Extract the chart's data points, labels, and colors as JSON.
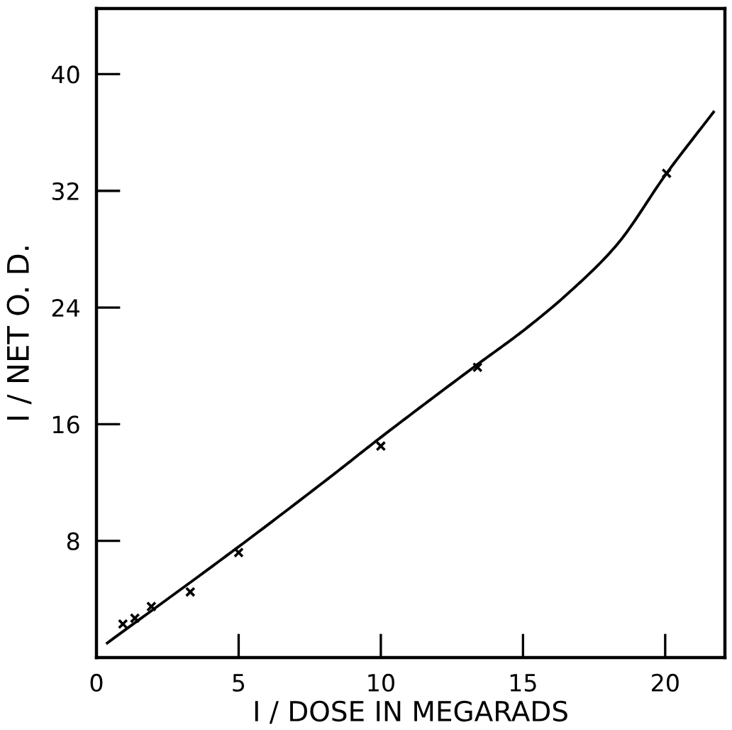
{
  "chart_data": {
    "type": "scatter",
    "xlabel": "I / DOSE IN MEGARADS",
    "ylabel": "I / NET O. D.",
    "xlim": [
      0,
      22.1
    ],
    "ylim": [
      0,
      44.5
    ],
    "xticks": [
      0,
      5,
      10,
      15,
      20
    ],
    "yticks": [
      8,
      16,
      24,
      32,
      40
    ],
    "grid": false,
    "legend": false,
    "series": [
      {
        "color": "#000000",
        "marker": "cross",
        "x": [
          0.93,
          1.35,
          1.93,
          3.3,
          5.0,
          10.0,
          13.4,
          20.05
        ],
        "values": [
          2.3,
          2.7,
          3.5,
          4.5,
          7.2,
          14.5,
          19.9,
          33.2
        ]
      },
      {
        "type": "line",
        "color": "#000000",
        "marker": "none",
        "line_style": "solid",
        "x": [
          0.38,
          5.0,
          8.3,
          10.0,
          13.4,
          15.0,
          16.6,
          18.3,
          20.05,
          21.7
        ],
        "values": [
          1.0,
          7.6,
          12.5,
          15.1,
          20.1,
          22.4,
          25.0,
          28.3,
          33.2,
          37.4
        ]
      }
    ]
  }
}
